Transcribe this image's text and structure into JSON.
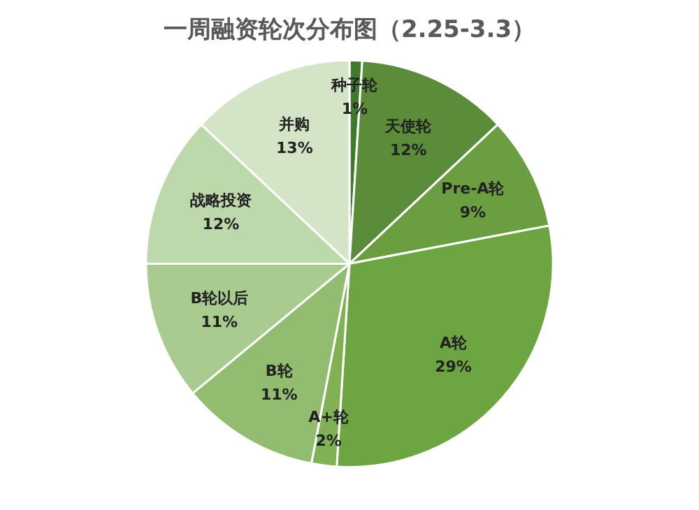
{
  "chart_data": {
    "type": "pie",
    "title": "一周融资轮次分布图（2.25-3.3）",
    "categories": [
      "种子轮",
      "天使轮",
      "Pre-A轮",
      "A轮",
      "A+轮",
      "B轮",
      "B轮以后",
      "战略投资",
      "并购"
    ],
    "values": [
      1,
      12,
      9,
      29,
      2,
      11,
      11,
      12,
      13
    ],
    "value_labels": [
      "1%",
      "12%",
      "9%",
      "29%",
      "2%",
      "11%",
      "11%",
      "12%",
      "13%"
    ],
    "colors": [
      "#3f7a2c",
      "#5a8c3a",
      "#6a9e40",
      "#6ea543",
      "#80b255",
      "#92bd70",
      "#a9cb8f",
      "#bdd8aa",
      "#d4e4c7"
    ],
    "legend": false
  }
}
